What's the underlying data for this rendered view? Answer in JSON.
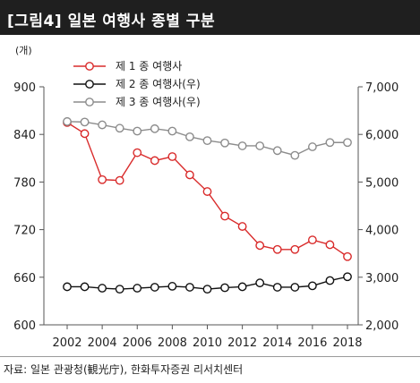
{
  "title": "[그림4] 일본 여행사 종별 구분",
  "source": "자료: 일본 관광청(観光庁), 한화투자증권 리서치센터",
  "chart_data": {
    "type": "line",
    "y_left_unit": "(개)",
    "x": [
      2002,
      2003,
      2004,
      2005,
      2006,
      2007,
      2008,
      2009,
      2010,
      2011,
      2012,
      2013,
      2014,
      2015,
      2016,
      2017,
      2018
    ],
    "x_ticks": [
      "2002",
      "2004",
      "2006",
      "2008",
      "2010",
      "2012",
      "2014",
      "2016",
      "2018"
    ],
    "y_left": {
      "range": [
        600,
        900
      ],
      "ticks": [
        "600",
        "660",
        "720",
        "780",
        "840",
        "900"
      ]
    },
    "y_right": {
      "range": [
        2000,
        7000
      ],
      "ticks": [
        "2,000",
        "3,000",
        "4,000",
        "5,000",
        "6,000",
        "7,000"
      ]
    },
    "series": [
      {
        "name": "제 1 종 여행사",
        "axis": "left",
        "color": "#d92b2b",
        "values": [
          855,
          841,
          783,
          782,
          817,
          807,
          812,
          789,
          768,
          737,
          724,
          700,
          695,
          695,
          707,
          701,
          686
        ]
      },
      {
        "name": "제 2 종 여행사(우)",
        "axis": "right",
        "color": "#111111",
        "values": [
          2800,
          2800,
          2770,
          2750,
          2770,
          2790,
          2810,
          2790,
          2750,
          2780,
          2800,
          2880,
          2790,
          2790,
          2820,
          2930,
          3010
        ]
      },
      {
        "name": "제 3 종 여행사(우)",
        "axis": "right",
        "color": "#8c8c8c",
        "values": [
          6270,
          6260,
          6200,
          6130,
          6070,
          6120,
          6070,
          5950,
          5870,
          5820,
          5760,
          5760,
          5660,
          5560,
          5740,
          5830,
          5830
        ]
      }
    ],
    "legend_position": "top-left",
    "grid": false
  }
}
